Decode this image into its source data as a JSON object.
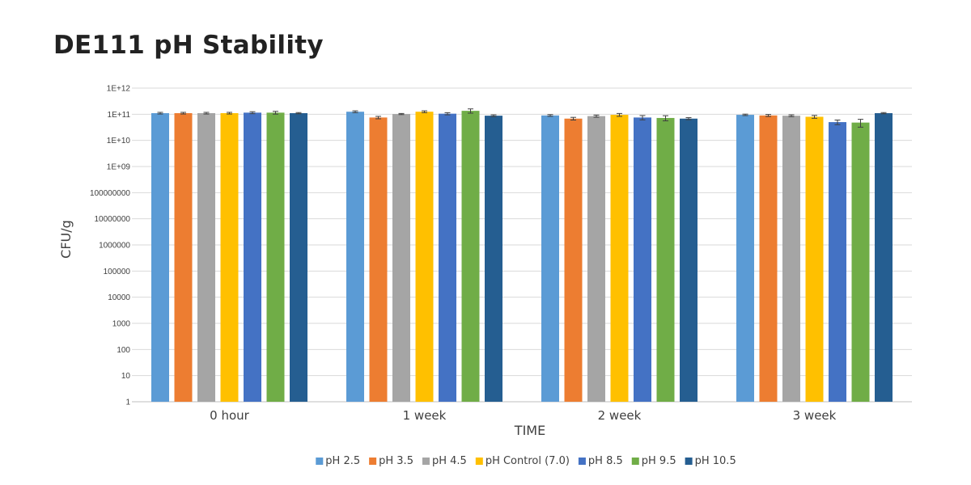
{
  "chart_data": {
    "type": "bar",
    "title": "DE111 pH Stability",
    "xlabel": "TIME",
    "ylabel": "CFU/g",
    "yscale": "log",
    "ylim": [
      1,
      1000000000000
    ],
    "grid": true,
    "legend_position": "bottom",
    "y_tick_labels": [
      "1",
      "10",
      "100",
      "1000",
      "10000",
      "100000",
      "1000000",
      "10000000",
      "100000000",
      "1E+09",
      "1E+10",
      "1E+11",
      "1E+12"
    ],
    "categories": [
      "0 hour",
      "1 week",
      "2 week",
      "3 week"
    ],
    "series": [
      {
        "name": "pH 2.5",
        "color": "#5B9BD5",
        "values": [
          110000000000,
          125000000000,
          90000000000,
          95000000000
        ],
        "errors": [
          8000000000,
          10000000000,
          7000000000,
          6000000000
        ]
      },
      {
        "name": "pH 3.5",
        "color": "#ED7D31",
        "values": [
          110000000000,
          75000000000,
          68000000000,
          90000000000
        ],
        "errors": [
          8000000000,
          8000000000,
          8000000000,
          8000000000
        ]
      },
      {
        "name": "pH 4.5",
        "color": "#A5A5A5",
        "values": [
          110000000000,
          102000000000,
          85000000000,
          88000000000
        ],
        "errors": [
          8000000000,
          5000000000,
          8000000000,
          7000000000
        ]
      },
      {
        "name": "pH Control (7.0)",
        "color": "#FFC000",
        "values": [
          110000000000,
          125000000000,
          95000000000,
          80000000000
        ],
        "errors": [
          8000000000,
          10000000000,
          12000000000,
          10000000000
        ]
      },
      {
        "name": "pH 8.5",
        "color": "#4472C4",
        "values": [
          115000000000,
          105000000000,
          75000000000,
          50000000000
        ],
        "errors": [
          10000000000,
          10000000000,
          14000000000,
          10000000000
        ]
      },
      {
        "name": "pH 9.5",
        "color": "#70AD47",
        "values": [
          115000000000,
          135000000000,
          72000000000,
          48000000000
        ],
        "errors": [
          14000000000,
          25000000000,
          16000000000,
          16000000000
        ]
      },
      {
        "name": "pH 10.5",
        "color": "#255E91",
        "values": [
          110000000000,
          88000000000,
          68000000000,
          110000000000
        ],
        "errors": [
          6000000000,
          7000000000,
          6000000000,
          6000000000
        ]
      }
    ]
  }
}
